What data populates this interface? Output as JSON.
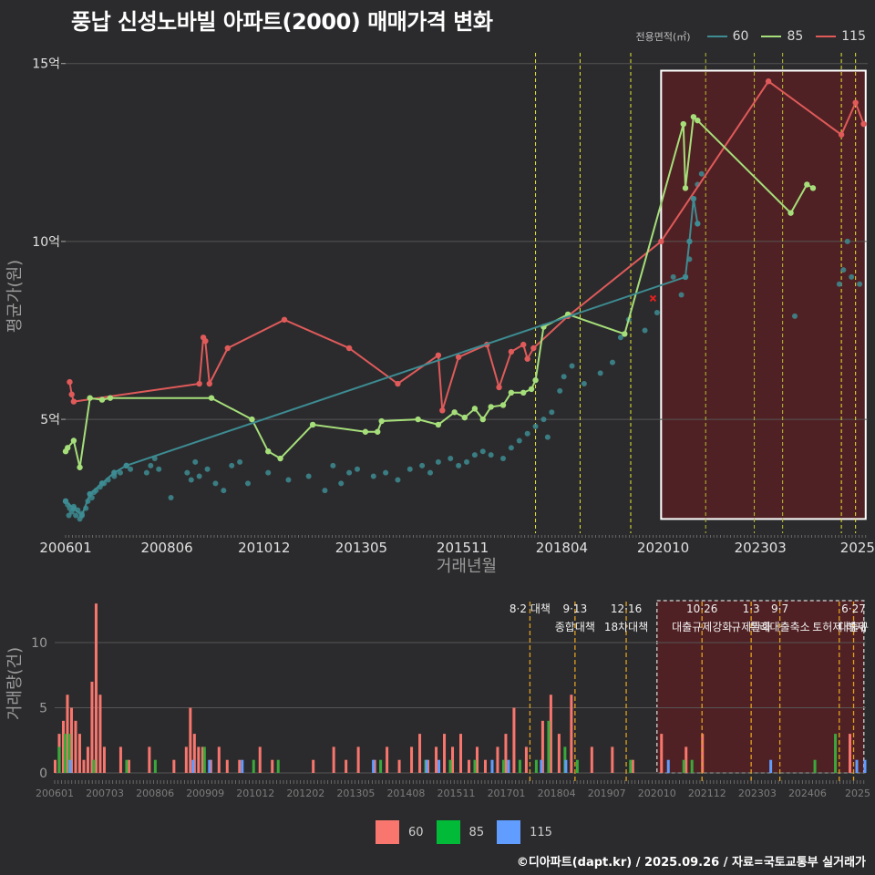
{
  "title": "풍납 신성노바빌 아파트(2000) 매매가격 변화",
  "caption": "©디아파트(dapt.kr) / 2025.09.26 / 자료=국토교통부 실거래가",
  "legend": {
    "title": "전용면적(㎡)",
    "items": [
      {
        "label": "60",
        "color": "#3d8c93"
      },
      {
        "label": "85",
        "color": "#a6df7a"
      },
      {
        "label": "115",
        "color": "#e05a5a"
      }
    ]
  },
  "bar_legend": [
    {
      "label": "60",
      "color": "#f8766d"
    },
    {
      "label": "85",
      "color": "#00ba38"
    },
    {
      "label": "115",
      "color": "#619cff"
    }
  ],
  "chart_data": [
    {
      "type": "line",
      "xlabel": "거래년월",
      "ylabel": "평균가(원)",
      "x_range": [
        2006.0,
        2025.8
      ],
      "ylim": [
        1.8,
        15.3
      ],
      "y_ticks": [
        {
          "v": 5,
          "label": "5억"
        },
        {
          "v": 10,
          "label": "10억"
        },
        {
          "v": 15,
          "label": "15억"
        }
      ],
      "x_ticks": [
        {
          "t": 2006.0,
          "label": "200601"
        },
        {
          "t": 2008.5,
          "label": "200806"
        },
        {
          "t": 2010.9,
          "label": "201012"
        },
        {
          "t": 2013.3,
          "label": "201305"
        },
        {
          "t": 2015.8,
          "label": "201511"
        },
        {
          "t": 2018.25,
          "label": "201804"
        },
        {
          "t": 2020.75,
          "label": "202010"
        },
        {
          "t": 2023.15,
          "label": "202303"
        },
        {
          "t": 2025.55,
          "label": "2025"
        }
      ],
      "policy_lines": [
        2017.6,
        2018.7,
        2019.95,
        2021.8,
        2023.0,
        2023.7,
        2025.15,
        2025.5
      ],
      "highlight_range": [
        2020.7,
        2025.75
      ],
      "highlight_y": [
        2.2,
        14.8
      ],
      "series": [
        {
          "name": "115",
          "color": "#e05a5a",
          "points": [
            [
              2006.1,
              6.05
            ],
            [
              2006.15,
              5.7
            ],
            [
              2006.2,
              5.5
            ],
            [
              2009.3,
              6.0
            ],
            [
              2009.4,
              7.3
            ],
            [
              2009.45,
              7.2
            ],
            [
              2009.55,
              6.0
            ],
            [
              2010.0,
              7.0
            ],
            [
              2011.4,
              7.8
            ],
            [
              2013.0,
              7.0
            ],
            [
              2014.2,
              6.0
            ],
            [
              2015.2,
              6.8
            ],
            [
              2015.3,
              5.25
            ],
            [
              2015.7,
              6.75
            ],
            [
              2016.4,
              7.1
            ],
            [
              2016.7,
              5.9
            ],
            [
              2017.0,
              6.9
            ],
            [
              2017.3,
              7.1
            ],
            [
              2017.4,
              6.7
            ],
            [
              2017.55,
              7.0
            ],
            [
              2018.4,
              7.9
            ],
            [
              2020.7,
              10.0
            ],
            [
              2023.35,
              14.5
            ],
            [
              2025.15,
              13.0
            ],
            [
              2025.5,
              13.9
            ],
            [
              2025.7,
              13.3
            ]
          ]
        },
        {
          "name": "85",
          "color": "#a6df7a",
          "points": [
            [
              2006.0,
              4.1
            ],
            [
              2006.05,
              4.2
            ],
            [
              2006.2,
              4.4
            ],
            [
              2006.35,
              3.65
            ],
            [
              2006.6,
              5.6
            ],
            [
              2006.9,
              5.55
            ],
            [
              2007.1,
              5.6
            ],
            [
              2009.6,
              5.6
            ],
            [
              2010.6,
              5.0
            ],
            [
              2011.0,
              4.1
            ],
            [
              2011.3,
              3.9
            ],
            [
              2012.1,
              4.85
            ],
            [
              2013.4,
              4.65
            ],
            [
              2013.7,
              4.65
            ],
            [
              2013.8,
              4.95
            ],
            [
              2014.7,
              5.0
            ],
            [
              2015.2,
              4.85
            ],
            [
              2015.6,
              5.2
            ],
            [
              2015.85,
              5.05
            ],
            [
              2016.1,
              5.3
            ],
            [
              2016.3,
              5.0
            ],
            [
              2016.5,
              5.35
            ],
            [
              2016.8,
              5.4
            ],
            [
              2017.0,
              5.75
            ],
            [
              2017.3,
              5.75
            ],
            [
              2017.5,
              5.85
            ],
            [
              2017.6,
              6.1
            ],
            [
              2017.8,
              7.6
            ],
            [
              2018.4,
              7.95
            ],
            [
              2019.8,
              7.4
            ],
            [
              2021.25,
              13.3
            ],
            [
              2021.3,
              11.5
            ],
            [
              2021.5,
              13.5
            ],
            [
              2021.6,
              13.4
            ],
            [
              2023.9,
              10.8
            ],
            [
              2024.3,
              11.6
            ],
            [
              2024.45,
              11.5
            ]
          ]
        },
        {
          "name": "60",
          "color": "#3d8c93",
          "points": [
            [
              2006.0,
              2.7
            ],
            [
              2006.2,
              2.5
            ],
            [
              2006.4,
              2.3
            ],
            [
              2006.6,
              2.9
            ],
            [
              2006.9,
              3.2
            ],
            [
              2007.2,
              3.5
            ],
            [
              2007.5,
              3.7
            ],
            [
              2021.3,
              9.0
            ],
            [
              2021.4,
              10.0
            ],
            [
              2021.5,
              11.2
            ],
            [
              2021.6,
              10.5
            ]
          ]
        }
      ],
      "scatter_60": [
        [
          2006.0,
          2.7
        ],
        [
          2006.05,
          2.6
        ],
        [
          2006.08,
          2.3
        ],
        [
          2006.1,
          2.5
        ],
        [
          2006.15,
          2.4
        ],
        [
          2006.2,
          2.55
        ],
        [
          2006.25,
          2.3
        ],
        [
          2006.3,
          2.45
        ],
        [
          2006.35,
          2.2
        ],
        [
          2006.4,
          2.35
        ],
        [
          2006.5,
          2.5
        ],
        [
          2006.55,
          2.7
        ],
        [
          2006.6,
          2.9
        ],
        [
          2006.65,
          2.8
        ],
        [
          2006.7,
          2.95
        ],
        [
          2006.75,
          3.0
        ],
        [
          2006.85,
          3.1
        ],
        [
          2006.95,
          3.2
        ],
        [
          2007.05,
          3.3
        ],
        [
          2007.2,
          3.4
        ],
        [
          2007.35,
          3.5
        ],
        [
          2007.5,
          3.7
        ],
        [
          2007.6,
          3.6
        ],
        [
          2008.0,
          3.5
        ],
        [
          2008.1,
          3.7
        ],
        [
          2008.2,
          3.9
        ],
        [
          2008.3,
          3.6
        ],
        [
          2008.6,
          2.8
        ],
        [
          2009.0,
          3.5
        ],
        [
          2009.1,
          3.3
        ],
        [
          2009.2,
          3.8
        ],
        [
          2009.3,
          3.4
        ],
        [
          2009.5,
          3.6
        ],
        [
          2009.7,
          3.2
        ],
        [
          2009.9,
          3.0
        ],
        [
          2010.1,
          3.7
        ],
        [
          2010.3,
          3.8
        ],
        [
          2010.5,
          3.2
        ],
        [
          2011.0,
          3.5
        ],
        [
          2011.5,
          3.3
        ],
        [
          2012.0,
          3.4
        ],
        [
          2012.4,
          3.0
        ],
        [
          2012.6,
          3.7
        ],
        [
          2012.8,
          3.2
        ],
        [
          2013.0,
          3.5
        ],
        [
          2013.2,
          3.6
        ],
        [
          2013.6,
          3.4
        ],
        [
          2013.9,
          3.5
        ],
        [
          2014.2,
          3.3
        ],
        [
          2014.5,
          3.6
        ],
        [
          2014.8,
          3.7
        ],
        [
          2015.0,
          3.5
        ],
        [
          2015.2,
          3.8
        ],
        [
          2015.5,
          3.9
        ],
        [
          2015.7,
          3.7
        ],
        [
          2015.9,
          3.8
        ],
        [
          2016.1,
          4.0
        ],
        [
          2016.3,
          4.1
        ],
        [
          2016.5,
          4.0
        ],
        [
          2016.8,
          3.9
        ],
        [
          2017.0,
          4.2
        ],
        [
          2017.2,
          4.4
        ],
        [
          2017.4,
          4.6
        ],
        [
          2017.6,
          4.8
        ],
        [
          2017.8,
          5.0
        ],
        [
          2017.9,
          4.5
        ],
        [
          2018.0,
          5.2
        ],
        [
          2018.2,
          5.8
        ],
        [
          2018.3,
          6.2
        ],
        [
          2018.5,
          6.5
        ],
        [
          2018.8,
          6.0
        ],
        [
          2019.2,
          6.3
        ],
        [
          2019.5,
          6.6
        ],
        [
          2019.7,
          7.3
        ],
        [
          2019.9,
          7.8
        ],
        [
          2020.3,
          7.5
        ],
        [
          2020.6,
          8.0
        ],
        [
          2021.0,
          9.0
        ],
        [
          2021.2,
          8.5
        ],
        [
          2021.4,
          9.5
        ],
        [
          2021.6,
          11.6
        ],
        [
          2021.7,
          11.9
        ],
        [
          2024.0,
          7.9
        ],
        [
          2025.1,
          8.8
        ],
        [
          2025.2,
          9.2
        ],
        [
          2025.3,
          10.0
        ],
        [
          2025.4,
          9.0
        ],
        [
          2025.6,
          8.8
        ]
      ],
      "highlight_points": [
        [
          2020.5,
          8.4
        ]
      ]
    },
    {
      "type": "bar",
      "ylabel": "거래량(건)",
      "ylim": [
        0,
        13.5
      ],
      "y_ticks": [
        0,
        5,
        10
      ],
      "x_ticks": [
        "200601",
        "200703",
        "200806",
        "200909",
        "201012",
        "201202",
        "201305",
        "201408",
        "201511",
        "201701",
        "201804",
        "201907",
        "202010",
        "202112",
        "202303",
        "202406",
        "2025"
      ],
      "policy_labels": [
        {
          "t": 2017.6,
          "date": "8·2 대책",
          "name": ""
        },
        {
          "t": 2018.7,
          "date": "9·13",
          "name": "종합대책"
        },
        {
          "t": 2019.95,
          "date": "12·16",
          "name": "18차대책"
        },
        {
          "t": 2021.8,
          "date": "10·26",
          "name": "대출규제강화"
        },
        {
          "t": 2023.0,
          "date": "1·3",
          "name": "규제완화"
        },
        {
          "t": 2023.7,
          "date": "9·7",
          "name": "특례대출축소"
        },
        {
          "t": 2025.15,
          "date": "",
          "name": "토허제 해제"
        },
        {
          "t": 2025.5,
          "date": "6·27",
          "name": "대출규"
        }
      ],
      "volume_60": [
        [
          2006.0,
          1
        ],
        [
          2006.1,
          3
        ],
        [
          2006.2,
          4
        ],
        [
          2006.3,
          6
        ],
        [
          2006.4,
          5
        ],
        [
          2006.5,
          4
        ],
        [
          2006.6,
          3
        ],
        [
          2006.7,
          1
        ],
        [
          2006.8,
          2
        ],
        [
          2006.9,
          7
        ],
        [
          2007.0,
          13
        ],
        [
          2007.1,
          6
        ],
        [
          2007.2,
          2
        ],
        [
          2007.6,
          2
        ],
        [
          2007.8,
          1
        ],
        [
          2008.3,
          2
        ],
        [
          2008.9,
          1
        ],
        [
          2009.2,
          2
        ],
        [
          2009.3,
          5
        ],
        [
          2009.4,
          3
        ],
        [
          2009.5,
          2
        ],
        [
          2009.6,
          2
        ],
        [
          2009.8,
          1
        ],
        [
          2010.0,
          2
        ],
        [
          2010.2,
          1
        ],
        [
          2010.5,
          1
        ],
        [
          2011.0,
          2
        ],
        [
          2011.3,
          1
        ],
        [
          2012.3,
          1
        ],
        [
          2012.8,
          2
        ],
        [
          2013.1,
          1
        ],
        [
          2013.4,
          2
        ],
        [
          2013.8,
          1
        ],
        [
          2014.1,
          2
        ],
        [
          2014.4,
          1
        ],
        [
          2014.7,
          2
        ],
        [
          2014.9,
          3
        ],
        [
          2015.1,
          1
        ],
        [
          2015.3,
          2
        ],
        [
          2015.5,
          3
        ],
        [
          2015.7,
          2
        ],
        [
          2015.9,
          3
        ],
        [
          2016.1,
          1
        ],
        [
          2016.3,
          2
        ],
        [
          2016.5,
          1
        ],
        [
          2016.8,
          2
        ],
        [
          2017.0,
          3
        ],
        [
          2017.2,
          5
        ],
        [
          2017.5,
          2
        ],
        [
          2017.9,
          4
        ],
        [
          2018.1,
          6
        ],
        [
          2018.3,
          3
        ],
        [
          2018.6,
          6
        ],
        [
          2019.1,
          2
        ],
        [
          2019.6,
          2
        ],
        [
          2020.1,
          1
        ],
        [
          2020.8,
          3
        ],
        [
          2021.4,
          2
        ],
        [
          2021.8,
          3
        ],
        [
          2025.4,
          3
        ]
      ],
      "volume_85": [
        [
          2006.05,
          2
        ],
        [
          2006.2,
          3
        ],
        [
          2006.3,
          3
        ],
        [
          2006.9,
          1
        ],
        [
          2007.7,
          1
        ],
        [
          2008.4,
          1
        ],
        [
          2009.6,
          2
        ],
        [
          2010.8,
          1
        ],
        [
          2011.4,
          1
        ],
        [
          2013.9,
          1
        ],
        [
          2015.0,
          1
        ],
        [
          2015.6,
          1
        ],
        [
          2016.2,
          1
        ],
        [
          2016.9,
          1
        ],
        [
          2017.3,
          1
        ],
        [
          2017.7,
          1
        ],
        [
          2018.0,
          4
        ],
        [
          2018.4,
          2
        ],
        [
          2018.7,
          1
        ],
        [
          2020.0,
          1
        ],
        [
          2021.3,
          1
        ],
        [
          2021.5,
          1
        ],
        [
          2024.5,
          1
        ],
        [
          2025.0,
          3
        ]
      ],
      "volume_115": [
        [
          2006.3,
          1
        ],
        [
          2009.3,
          1
        ],
        [
          2009.7,
          1
        ],
        [
          2010.5,
          1
        ],
        [
          2013.7,
          1
        ],
        [
          2015.0,
          1
        ],
        [
          2015.3,
          1
        ],
        [
          2016.6,
          1
        ],
        [
          2017.0,
          1
        ],
        [
          2017.8,
          1
        ],
        [
          2018.4,
          1
        ],
        [
          2020.9,
          1
        ],
        [
          2023.4,
          1
        ],
        [
          2025.5,
          1
        ],
        [
          2025.7,
          1
        ]
      ]
    }
  ]
}
